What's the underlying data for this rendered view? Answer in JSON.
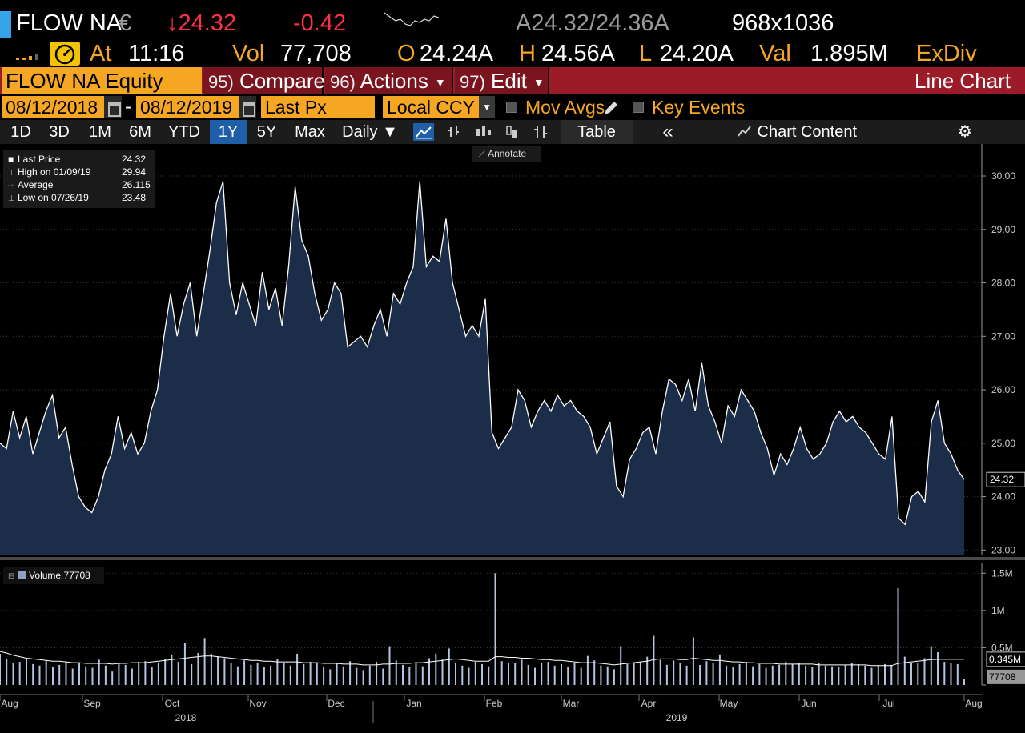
{
  "header": {
    "ticker": "FLOW NA",
    "currency_symbol": "€",
    "last_price": "↓24.32",
    "change": "-0.42",
    "bid_ask": "A24.32/24.36A",
    "bid_ask_size": "968x1036",
    "at_label": "At",
    "time": "11:16",
    "vol_label": "Vol",
    "vol_value": "77,708",
    "open_label": "O",
    "open_value": "24.24A",
    "high_label": "H",
    "high_value": "24.56A",
    "low_label": "L",
    "low_value": "24.20A",
    "val_label": "Val",
    "val_value": "1.895M",
    "exdiv": "ExDiv"
  },
  "command_bar": {
    "security": "FLOW NA Equity",
    "compare_num": "95)",
    "compare_label": "Compare",
    "actions_num": "96)",
    "actions_label": "Actions",
    "edit_num": "97)",
    "edit_label": "Edit",
    "title": "Line Chart"
  },
  "date_row": {
    "start_date": "08/12/2018",
    "end_date": "08/12/2019",
    "field": "Last Px",
    "currency": "Local CCY",
    "mov_avgs": "Mov Avgs",
    "key_events": "Key Events"
  },
  "toolbar": {
    "ranges": [
      "1D",
      "3D",
      "1M",
      "6M",
      "YTD",
      "1Y",
      "5Y",
      "Max"
    ],
    "active_range": "1Y",
    "frequency": "Daily",
    "table": "Table",
    "chart_content": "Chart Content",
    "icons": [
      "line-chart-icon",
      "bar-chart-icon",
      "candle-icon",
      "hilo-icon",
      "ohlc-icon"
    ]
  },
  "legend": {
    "last_price_label": "Last Price",
    "last_price_value": "24.32",
    "high_label": "High on 01/09/19",
    "high_value": "29.94",
    "average_label": "Average",
    "average_value": "26.115",
    "low_label": "Low on 07/26/19",
    "low_value": "23.48",
    "annotate": "Annotate",
    "volume_label": "Volume",
    "volume_value": "77708"
  },
  "colors": {
    "accent_orange": "#f5a623",
    "down_red": "#ff3040",
    "command_bar": "#9b1b28",
    "area_fill": "#1b2d48",
    "price_line": "#ffffff",
    "volume_bar": "#b4c4e0"
  },
  "chart_data": [
    {
      "type": "area",
      "series": [
        {
          "name": "Last Price",
          "values": [
            25.0,
            24.9,
            25.6,
            25.1,
            25.5,
            24.8,
            25.2,
            25.6,
            25.9,
            25.1,
            25.3,
            24.6,
            24.0,
            23.8,
            23.7,
            24.0,
            24.5,
            24.8,
            25.5,
            24.9,
            25.2,
            24.8,
            25.0,
            25.6,
            26.0,
            27.0,
            27.8,
            27.0,
            27.6,
            28.0,
            27.0,
            27.8,
            28.6,
            29.5,
            29.9,
            28.0,
            27.4,
            28.0,
            27.6,
            27.2,
            28.2,
            27.5,
            27.9,
            27.2,
            28.3,
            29.8,
            28.8,
            28.5,
            27.8,
            27.3,
            27.5,
            28.0,
            27.8,
            26.8,
            26.9,
            27.0,
            26.8,
            27.2,
            27.5,
            27.0,
            27.8,
            27.6,
            28.0,
            28.3,
            29.9,
            28.3,
            28.5,
            28.4,
            29.2,
            28.0,
            27.5,
            27.0,
            27.2,
            27.0,
            27.7,
            25.2,
            24.9,
            25.1,
            25.3,
            26.0,
            25.8,
            25.3,
            25.6,
            25.8,
            25.6,
            25.9,
            25.7,
            25.8,
            25.6,
            25.5,
            25.3,
            24.8,
            25.1,
            25.4,
            24.2,
            24.0,
            24.7,
            24.9,
            25.2,
            25.3,
            24.8,
            25.6,
            26.2,
            26.1,
            25.8,
            26.2,
            25.6,
            26.5,
            25.7,
            25.4,
            25.0,
            25.7,
            25.5,
            26.0,
            25.8,
            25.6,
            25.2,
            24.9,
            24.4,
            24.8,
            24.6,
            24.9,
            25.3,
            24.9,
            24.7,
            24.8,
            25.0,
            25.4,
            25.6,
            25.4,
            25.5,
            25.3,
            25.2,
            25.0,
            24.8,
            24.7,
            25.5,
            23.6,
            23.48,
            24.0,
            24.1,
            23.9,
            25.4,
            25.8,
            25.0,
            24.8,
            24.5,
            24.32
          ]
        }
      ],
      "x_tick_labels": [
        "Aug",
        "Sep",
        "Oct",
        "Nov",
        "Dec",
        "Jan",
        "Feb",
        "Mar",
        "Apr",
        "May",
        "Jun",
        "Jul",
        "Aug"
      ],
      "x_year_labels": [
        "2018",
        "2019"
      ],
      "y_tick_labels": [
        "23.00",
        "24.00",
        "25.00",
        "26.00",
        "27.00",
        "28.00",
        "29.00",
        "30.00"
      ],
      "ylim": [
        22.9,
        30.3
      ],
      "last_value_label": "24.32",
      "grid": true,
      "legend_position": "top-left"
    },
    {
      "type": "bar",
      "series": [
        {
          "name": "Volume",
          "values": [
            420000,
            350000,
            300000,
            310000,
            360000,
            280000,
            260000,
            330000,
            240000,
            270000,
            310000,
            220000,
            300000,
            250000,
            230000,
            340000,
            260000,
            180000,
            300000,
            270000,
            220000,
            310000,
            320000,
            240000,
            290000,
            350000,
            410000,
            310000,
            560000,
            280000,
            430000,
            630000,
            420000,
            380000,
            360000,
            290000,
            250000,
            330000,
            270000,
            300000,
            240000,
            260000,
            350000,
            290000,
            260000,
            420000,
            280000,
            310000,
            300000,
            240000,
            210000,
            290000,
            250000,
            320000,
            230000,
            200000,
            260000,
            310000,
            220000,
            520000,
            330000,
            270000,
            240000,
            290000,
            250000,
            360000,
            420000,
            340000,
            490000,
            300000,
            260000,
            230000,
            310000,
            280000,
            250000,
            1500000,
            320000,
            290000,
            300000,
            340000,
            270000,
            230000,
            290000,
            310000,
            260000,
            280000,
            240000,
            300000,
            230000,
            390000,
            330000,
            260000,
            250000,
            210000,
            520000,
            280000,
            300000,
            310000,
            380000,
            660000,
            340000,
            270000,
            330000,
            290000,
            260000,
            640000,
            270000,
            320000,
            300000,
            410000,
            260000,
            240000,
            280000,
            310000,
            250000,
            280000,
            230000,
            260000,
            270000,
            310000,
            280000,
            290000,
            260000,
            240000,
            300000,
            260000,
            250000,
            240000,
            270000,
            290000,
            280000,
            260000,
            230000,
            260000,
            280000,
            270000,
            1300000,
            380000,
            290000,
            300000,
            360000,
            520000,
            440000,
            310000,
            290000,
            280000,
            77708
          ]
        },
        {
          "name": "Volume moving average",
          "values": [
            450000,
            430000,
            400000,
            380000,
            360000,
            350000,
            340000,
            330000,
            320000,
            320000,
            310000,
            300000,
            300000,
            290000,
            290000,
            290000,
            290000,
            280000,
            290000,
            290000,
            300000,
            300000,
            300000,
            310000,
            320000,
            330000,
            340000,
            350000,
            360000,
            370000,
            380000,
            390000,
            390000,
            380000,
            370000,
            360000,
            350000,
            340000,
            330000,
            330000,
            320000,
            320000,
            310000,
            310000,
            310000,
            310000,
            300000,
            300000,
            300000,
            290000,
            290000,
            290000,
            280000,
            280000,
            280000,
            270000,
            270000,
            270000,
            280000,
            280000,
            290000,
            290000,
            290000,
            300000,
            300000,
            310000,
            320000,
            330000,
            340000,
            350000,
            340000,
            330000,
            320000,
            320000,
            320000,
            380000,
            380000,
            370000,
            370000,
            360000,
            360000,
            350000,
            340000,
            340000,
            330000,
            330000,
            320000,
            310000,
            300000,
            300000,
            300000,
            290000,
            280000,
            270000,
            280000,
            290000,
            300000,
            310000,
            320000,
            340000,
            350000,
            350000,
            350000,
            340000,
            340000,
            360000,
            350000,
            340000,
            330000,
            330000,
            320000,
            310000,
            310000,
            300000,
            300000,
            290000,
            290000,
            290000,
            280000,
            280000,
            280000,
            280000,
            280000,
            280000,
            270000,
            270000,
            270000,
            270000,
            270000,
            270000,
            270000,
            270000,
            260000,
            260000,
            260000,
            260000,
            290000,
            300000,
            310000,
            320000,
            330000,
            340000,
            345000,
            345000,
            345000,
            345000,
            345000
          ]
        }
      ],
      "y_tick_labels": [
        "0",
        "0.5M",
        "1M",
        "1.5M"
      ],
      "ylim": [
        0,
        1600000
      ],
      "avg_value_label": "0.345M",
      "last_value_label": "77708",
      "legend_position": "top-left"
    }
  ]
}
